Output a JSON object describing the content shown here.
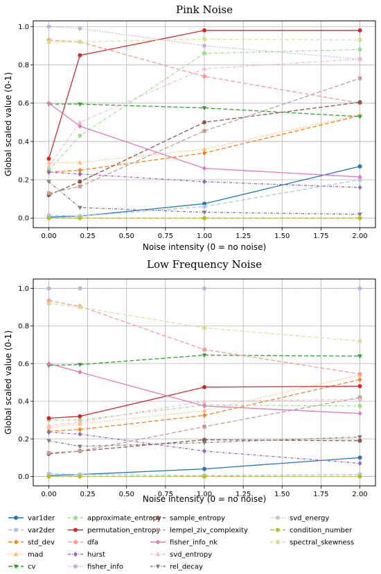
{
  "legend": {
    "placement": "bottom",
    "columns": 4
  },
  "chart_data": [
    {
      "type": "line",
      "title": "Pink Noise",
      "xlabel": "Noise intensity (0 = no noise)",
      "ylabel": "Global scaled value (0-1)",
      "xlim": [
        -0.1,
        2.1
      ],
      "ylim": [
        -0.05,
        1.03
      ],
      "grid": true,
      "x": [
        0,
        0.2,
        1,
        2
      ],
      "xticks": [
        "0.00",
        "0.25",
        "0.50",
        "0.75",
        "1.00",
        "1.25",
        "1.50",
        "1.75",
        "2.00"
      ],
      "yticks": [
        "0.0",
        "0.2",
        "0.4",
        "0.6",
        "0.8",
        "1.0"
      ],
      "series": [
        {
          "name": "var1der",
          "values": [
            0.005,
            0.01,
            0.075,
            0.27
          ]
        },
        {
          "name": "var2der",
          "values": [
            0.015,
            0.01,
            0.06,
            0.2
          ]
        },
        {
          "name": "std_dev",
          "values": [
            0.24,
            0.25,
            0.34,
            0.535
          ]
        },
        {
          "name": "mad",
          "values": [
            0.29,
            0.29,
            0.36,
            0.54
          ]
        },
        {
          "name": "cv",
          "values": [
            0.595,
            0.595,
            0.575,
            0.53
          ]
        },
        {
          "name": "approximate_entropy",
          "values": [
            0.25,
            0.43,
            0.86,
            0.88
          ]
        },
        {
          "name": "permutation_entropy",
          "values": [
            0.31,
            0.85,
            0.98,
            0.98
          ]
        },
        {
          "name": "dfa",
          "values": [
            0.93,
            0.92,
            0.74,
            0.6
          ]
        },
        {
          "name": "hurst",
          "values": [
            0.24,
            0.23,
            0.19,
            0.16
          ]
        },
        {
          "name": "fisher_info",
          "values": [
            1.0,
            0.99,
            0.9,
            0.83
          ]
        },
        {
          "name": "sample_entropy",
          "values": [
            0.12,
            0.19,
            0.5,
            0.605
          ]
        },
        {
          "name": "lempel_ziv_complexity",
          "values": [
            0.13,
            0.165,
            0.455,
            0.73
          ]
        },
        {
          "name": "fisher_info_nk",
          "values": [
            0.6,
            0.48,
            0.26,
            0.215
          ]
        },
        {
          "name": "svd_entropy",
          "values": [
            0.27,
            0.5,
            0.78,
            0.83
          ]
        },
        {
          "name": "rel_decay",
          "values": [
            0.19,
            0.055,
            0.03,
            0.02
          ]
        },
        {
          "name": "svd_energy",
          "values": [
            0.0,
            0.0,
            0.0,
            0.0
          ]
        },
        {
          "name": "condition_number",
          "values": [
            0.0,
            0.0,
            0.0,
            0.0
          ]
        },
        {
          "name": "spectral_skewness",
          "values": [
            0.92,
            0.92,
            0.935,
            0.93
          ]
        }
      ]
    },
    {
      "type": "line",
      "title": "Low Frequency Noise",
      "xlabel": "Noise intensity (0 = no noise)",
      "ylabel": "Global scaled value (0-1)",
      "xlim": [
        -0.1,
        2.1
      ],
      "ylim": [
        -0.05,
        1.05
      ],
      "grid": true,
      "x": [
        0,
        0.2,
        1,
        2
      ],
      "xticks": [
        "0.00",
        "0.25",
        "0.50",
        "0.75",
        "1.00",
        "1.25",
        "1.50",
        "1.75",
        "2.00"
      ],
      "yticks": [
        "0.0",
        "0.2",
        "0.4",
        "0.6",
        "0.8",
        "1.0"
      ],
      "series": [
        {
          "name": "var1der",
          "values": [
            0.005,
            0.01,
            0.04,
            0.1
          ]
        },
        {
          "name": "var2der",
          "values": [
            0.015,
            0.01,
            0.005,
            0.01
          ]
        },
        {
          "name": "std_dev",
          "values": [
            0.24,
            0.25,
            0.325,
            0.515
          ]
        },
        {
          "name": "mad",
          "values": [
            0.26,
            0.28,
            0.35,
            0.54
          ]
        },
        {
          "name": "cv",
          "values": [
            0.59,
            0.595,
            0.645,
            0.64
          ]
        },
        {
          "name": "approximate_entropy",
          "values": [
            0.3,
            0.3,
            0.38,
            0.375
          ]
        },
        {
          "name": "permutation_entropy",
          "values": [
            0.31,
            0.32,
            0.475,
            0.48
          ]
        },
        {
          "name": "dfa",
          "values": [
            0.935,
            0.905,
            0.675,
            0.545
          ]
        },
        {
          "name": "hurst",
          "values": [
            0.235,
            0.225,
            0.135,
            0.07
          ]
        },
        {
          "name": "fisher_info",
          "values": [
            1.0,
            1.0,
            1.0,
            1.0
          ]
        },
        {
          "name": "sample_entropy",
          "values": [
            0.12,
            0.135,
            0.195,
            0.19
          ]
        },
        {
          "name": "lempel_ziv_complexity",
          "values": [
            0.125,
            0.135,
            0.265,
            0.42
          ]
        },
        {
          "name": "fisher_info_nk",
          "values": [
            0.6,
            0.555,
            0.375,
            0.335
          ]
        },
        {
          "name": "svd_entropy",
          "values": [
            0.27,
            0.29,
            0.4,
            0.41
          ]
        },
        {
          "name": "rel_decay",
          "values": [
            0.19,
            0.16,
            0.18,
            0.21
          ]
        },
        {
          "name": "svd_energy",
          "values": [
            0.0,
            0.0,
            0.0,
            0.0
          ]
        },
        {
          "name": "condition_number",
          "values": [
            0.0,
            0.0,
            0.0,
            0.0
          ]
        },
        {
          "name": "spectral_skewness",
          "values": [
            0.92,
            0.9,
            0.79,
            0.72
          ]
        }
      ]
    }
  ],
  "styles": {
    "var1der": {
      "color": "#1f77b4",
      "dash": "",
      "marker": "circle"
    },
    "var2der": {
      "color": "#aec7e8",
      "dash": "6,3",
      "marker": "square"
    },
    "std_dev": {
      "color": "#ff7f0e",
      "dash": "6,3",
      "marker": "diamond"
    },
    "mad": {
      "color": "#ffbb78",
      "dash": "1.5,2",
      "marker": "triangle-up"
    },
    "cv": {
      "color": "#2ca02c",
      "dash": "6,3",
      "marker": "triangle-down"
    },
    "approximate_entropy": {
      "color": "#98df8a",
      "dash": "4,2,1,2",
      "marker": "circle"
    },
    "permutation_entropy": {
      "color": "#d62728",
      "dash": "",
      "marker": "circle"
    },
    "dfa": {
      "color": "#ff9896",
      "dash": "6,3",
      "marker": "circle"
    },
    "hurst": {
      "color": "#9467bd",
      "dash": "4,2,1,2",
      "marker": "diamond"
    },
    "fisher_info": {
      "color": "#c5b0d5",
      "dash": "1.5,2",
      "marker": "circle"
    },
    "sample_entropy": {
      "color": "#8c564b",
      "dash": "6,3",
      "marker": "circle"
    },
    "lempel_ziv_complexity": {
      "color": "#c49c94",
      "dash": "6,3",
      "marker": "square"
    },
    "fisher_info_nk": {
      "color": "#e377c2",
      "dash": "",
      "marker": "diamond"
    },
    "svd_entropy": {
      "color": "#f7b6d2",
      "dash": "4,2,1,2",
      "marker": "triangle-up"
    },
    "rel_decay": {
      "color": "#7f7f7f",
      "dash": "4,2,1,2",
      "marker": "triangle-down"
    },
    "svd_energy": {
      "color": "#c7c7c7",
      "dash": "1.5,2",
      "marker": "circle"
    },
    "condition_number": {
      "color": "#bcbd22",
      "dash": "6,3",
      "marker": "circle"
    },
    "spectral_skewness": {
      "color": "#dbdb8d",
      "dash": "4,2,1,2",
      "marker": "square"
    }
  }
}
